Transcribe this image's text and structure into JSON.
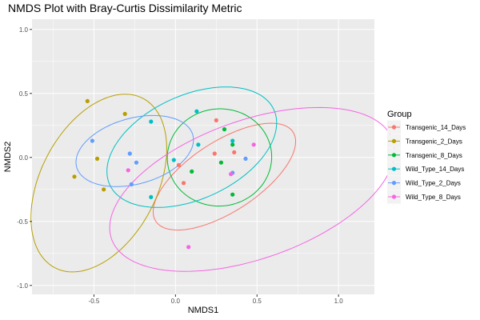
{
  "chart_data": {
    "type": "scatter",
    "title": "NMDS Plot with Bray-Curtis Dissimilarity Metric",
    "xlabel": "NMDS1",
    "ylabel": "NMDS2",
    "xlim": [
      -0.88,
      1.22
    ],
    "ylim": [
      -1.07,
      1.08
    ],
    "xticks": [
      -0.5,
      0.0,
      0.5,
      1.0
    ],
    "xtick_labels": [
      "-0.5",
      "0.0",
      "0.5",
      "1.0"
    ],
    "yticks": [
      -1.0,
      -0.5,
      0.0,
      0.5,
      1.0
    ],
    "ytick_labels": [
      "-1.0",
      "-0.5",
      "0.0",
      "0.5",
      "1.0"
    ],
    "grid": true,
    "legend": {
      "title": "Group",
      "position": "right"
    },
    "series": [
      {
        "name": "Transgenic_14_Days",
        "color": "#F8766D",
        "points": [
          [
            0.02,
            -0.06
          ],
          [
            0.05,
            -0.2
          ],
          [
            0.24,
            0.03
          ],
          [
            0.25,
            0.29
          ],
          [
            0.36,
            0.04
          ]
        ],
        "ellipse": {
          "cx": 0.3,
          "cy": -0.15,
          "rx": 0.55,
          "ry": 0.25,
          "angle_deg": 43
        }
      },
      {
        "name": "Transgenic_2_Days",
        "color": "#B79F00",
        "points": [
          [
            -0.54,
            0.44
          ],
          [
            -0.31,
            0.34
          ],
          [
            -0.48,
            -0.01
          ],
          [
            -0.62,
            -0.15
          ],
          [
            -0.44,
            -0.25
          ]
        ],
        "ellipse": {
          "cx": -0.47,
          "cy": -0.2,
          "rx": 0.72,
          "ry": 0.37,
          "angle_deg": 72
        }
      },
      {
        "name": "Transgenic_8_Days",
        "color": "#00BA38",
        "points": [
          [
            0.3,
            0.22
          ],
          [
            0.35,
            0.1
          ],
          [
            0.28,
            -0.04
          ],
          [
            0.1,
            -0.11
          ],
          [
            0.35,
            -0.29
          ]
        ],
        "ellipse": {
          "cx": 0.27,
          "cy": 0.0,
          "rx": 0.38,
          "ry": 0.32,
          "angle_deg": 88
        }
      },
      {
        "name": "Wild_Type_14_Days",
        "color": "#00BFC4",
        "points": [
          [
            -0.15,
            0.28
          ],
          [
            0.13,
            0.36
          ],
          [
            0.35,
            0.13
          ],
          [
            0.14,
            0.1
          ],
          [
            -0.01,
            -0.02
          ],
          [
            -0.15,
            -0.31
          ]
        ],
        "ellipse": {
          "cx": 0.1,
          "cy": 0.08,
          "rx": 0.59,
          "ry": 0.38,
          "angle_deg": 38
        }
      },
      {
        "name": "Wild_Type_2_Days",
        "color": "#619CFF",
        "points": [
          [
            -0.51,
            0.13
          ],
          [
            -0.28,
            0.03
          ],
          [
            -0.24,
            -0.04
          ],
          [
            -0.27,
            -0.21
          ],
          [
            0.43,
            -0.01
          ],
          [
            0.35,
            -0.12
          ]
        ],
        "ellipse": {
          "cx": -0.25,
          "cy": 0.05,
          "rx": 0.38,
          "ry": 0.25,
          "angle_deg": 25
        }
      },
      {
        "name": "Wild_Type_8_Days",
        "color": "#F564E3",
        "points": [
          [
            -0.29,
            -0.1
          ],
          [
            0.34,
            -0.13
          ],
          [
            0.48,
            0.1
          ],
          [
            0.08,
            -0.7
          ]
        ],
        "ellipse": {
          "cx": 0.47,
          "cy": -0.25,
          "rx": 0.95,
          "ry": 0.52,
          "angle_deg": 28
        }
      }
    ]
  }
}
